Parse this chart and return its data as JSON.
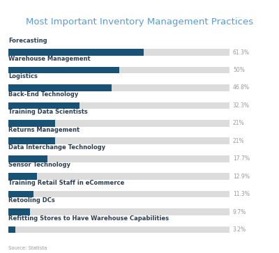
{
  "title": "Most Important Inventory Management Practices",
  "categories": [
    "Forecasting",
    "Warehouse Management",
    "Logistics",
    "Back-End Technology",
    "Training Data Scientists",
    "Returns Management",
    "Data Interchange Technology",
    "Sensor Technology",
    "Training Retail Staff in eCommerce",
    "Retooling DCs",
    "Refitting Stores to Have Warehouse Capabilities"
  ],
  "values": [
    61.3,
    50.0,
    46.8,
    32.3,
    21.0,
    21.0,
    17.7,
    12.9,
    11.3,
    9.7,
    3.2
  ],
  "labels": [
    "61.3%",
    "50%",
    "46.8%",
    "32.3%",
    "21%",
    "21%",
    "17.7%",
    "12.9%",
    "11.3%",
    "9.7%",
    "3.2%"
  ],
  "max_value": 100,
  "bar_color": "#1a5276",
  "bg_bar_color": "#dcdcdc",
  "title_color": "#5b9bd5",
  "label_color": "#999999",
  "category_color": "#2c3e50",
  "source_text": "Source: Statista",
  "background_color": "#ffffff",
  "bar_height": 0.38,
  "title_fontsize": 9.5,
  "cat_fontsize": 6.0,
  "val_fontsize": 5.5
}
